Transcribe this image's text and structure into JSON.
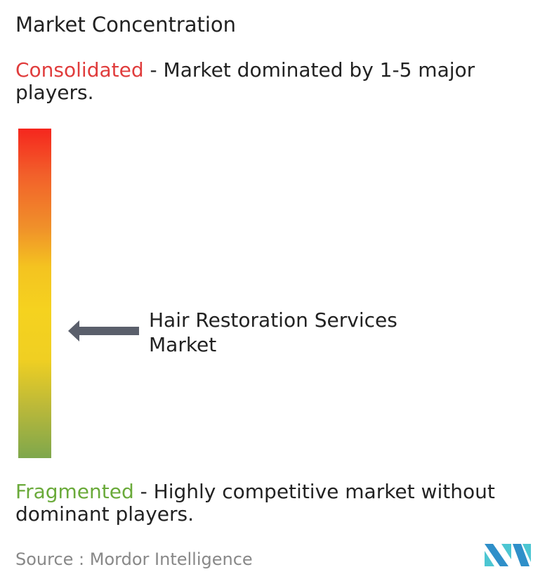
{
  "title": "Market Concentration",
  "consolidated": {
    "label": "Consolidated",
    "description": " - Market dominated by 1-5 major players.",
    "color": "#e03c3c"
  },
  "fragmented": {
    "label": "Fragmented",
    "description": " - Highly competitive market without dominant players.",
    "color": "#6aaa3a"
  },
  "scale": {
    "top_color": "#f5261e",
    "middle_color": "#f5d21f",
    "bottom_color": "#7ea74c"
  },
  "market_marker": {
    "label": "Hair Restoration Services Market",
    "arrow_color": "#5a5f6b",
    "icon": "arrow-left-icon"
  },
  "source": "Source :  Mordor Intelligence",
  "logo": {
    "text": "Mordor Intelligence",
    "colors": [
      "#2f8fc9",
      "#4cc6d2"
    ]
  }
}
